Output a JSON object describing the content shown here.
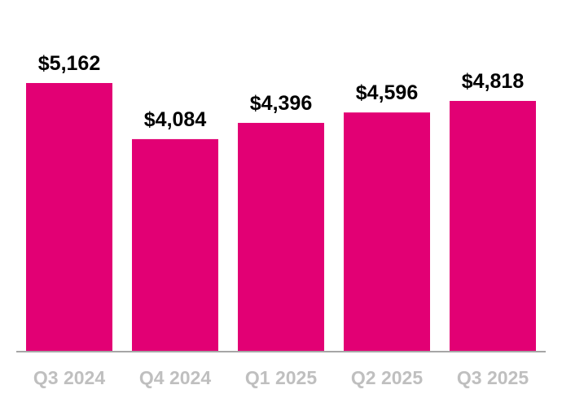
{
  "chart_data": {
    "type": "bar",
    "title": "",
    "xlabel": "",
    "ylabel": "",
    "categories": [
      "Q3 2024",
      "Q4 2024",
      "Q1 2025",
      "Q2 2025",
      "Q3 2025"
    ],
    "values": [
      5162,
      4084,
      4396,
      4596,
      4818
    ],
    "data_labels": [
      "$5,162",
      "$4,084",
      "$4,396",
      "$4,596",
      "$4,818"
    ],
    "ylim": [
      0,
      6300
    ],
    "grid": false,
    "legend": "none",
    "colors": {
      "bar": "#E20074",
      "axis": "#A6A6A6",
      "tick_text": "#BFBFBF",
      "value_text": "#000000"
    }
  }
}
